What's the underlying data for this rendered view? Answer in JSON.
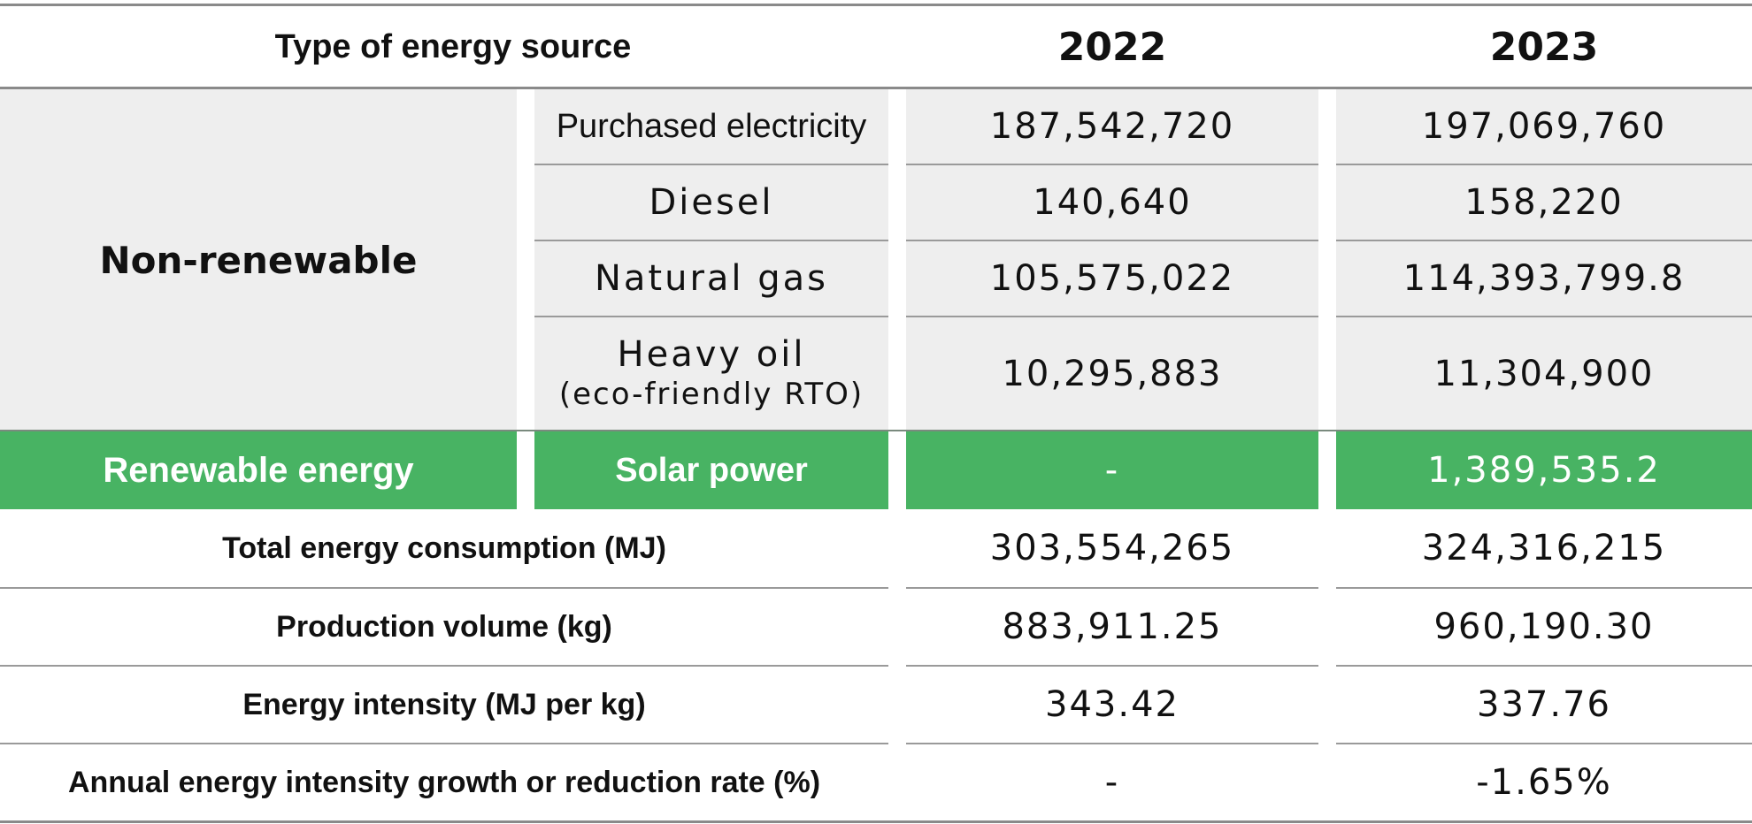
{
  "header": {
    "type_label": "Type of energy source",
    "year_1": "2022",
    "year_2": "2023"
  },
  "non_renewable": {
    "group_label": "Non-renewable",
    "rows": [
      {
        "source": "Purchased electricity",
        "source_note": "",
        "v2022": "187,542,720",
        "v2023": "197,069,760"
      },
      {
        "source": "Diesel",
        "source_note": "",
        "v2022": "140,640",
        "v2023": "158,220"
      },
      {
        "source": "Natural gas",
        "source_note": "",
        "v2022": "105,575,022",
        "v2023": "114,393,799.8"
      },
      {
        "source": "Heavy oil",
        "source_note": "(eco-friendly RTO)",
        "v2022": "10,295,883",
        "v2023": "11,304,900"
      }
    ]
  },
  "renewable": {
    "group_label": "Renewable energy",
    "source": "Solar power",
    "v2022": "-",
    "v2023": "1,389,535.2"
  },
  "summary": [
    {
      "label": "Total energy consumption (MJ)",
      "v2022": "303,554,265",
      "v2023": "324,316,215"
    },
    {
      "label": "Production volume (kg)",
      "v2022": "883,911.25",
      "v2023": "960,190.30"
    },
    {
      "label": "Energy intensity (MJ per kg)",
      "v2022": "343.42",
      "v2023": "337.76"
    },
    {
      "label": "Annual energy intensity growth or reduction rate (%)",
      "v2022": "-",
      "v2023": "-1.65%"
    }
  ],
  "colors": {
    "row_gray": "#eeeeee",
    "renewable_green": "#48b363",
    "rule": "#9a9a9a"
  }
}
